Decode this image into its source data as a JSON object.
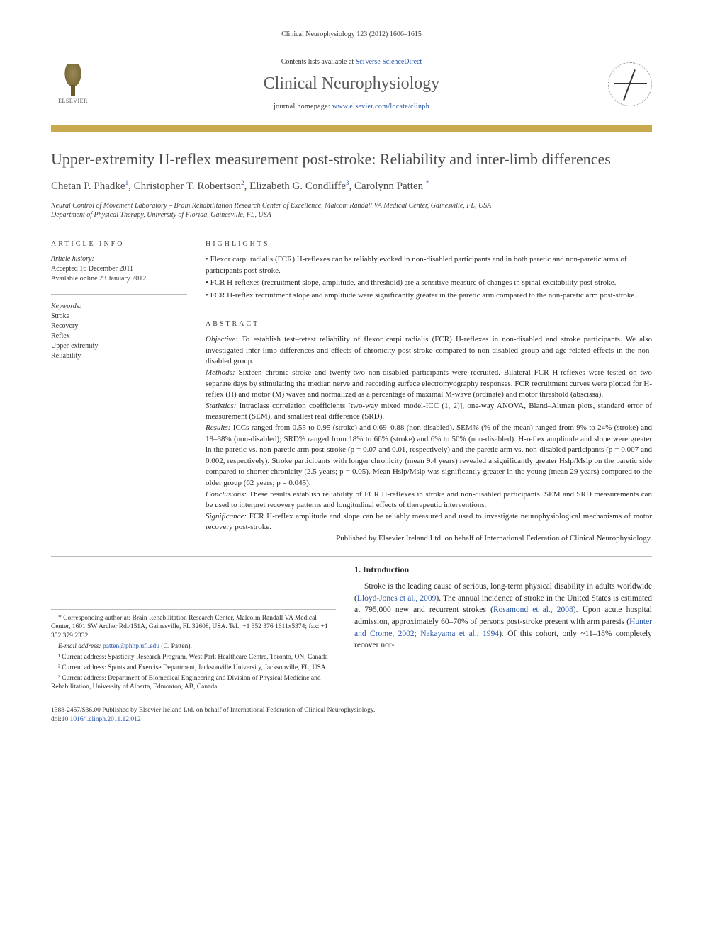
{
  "journal_ref": "Clinical Neurophysiology 123 (2012) 1606–1615",
  "header": {
    "contents_prefix": "Contents lists available at ",
    "contents_link": "SciVerse ScienceDirect",
    "journal_name": "Clinical Neurophysiology",
    "homepage_prefix": "journal homepage: ",
    "homepage_link": "www.elsevier.com/locate/clinph",
    "publisher_label": "ELSEVIER"
  },
  "colors": {
    "accent_bar": "#c9a94f",
    "link": "#2956a8",
    "title_text": "#4a4a4a",
    "body_text": "#2a2a2a",
    "grey_text": "#5a5a5a"
  },
  "title": "Upper-extremity H-reflex measurement post-stroke: Reliability and inter-limb differences",
  "authors_html": "Chetan P. Phadke ¹, Christopher T. Robertson ², Elizabeth G. Condliffe ³, Carolynn Patten *",
  "authors": [
    {
      "name": "Chetan P. Phadke",
      "note": "1"
    },
    {
      "name": "Christopher T. Robertson",
      "note": "2"
    },
    {
      "name": "Elizabeth G. Condliffe",
      "note": "3"
    },
    {
      "name": "Carolynn Patten",
      "note": "*"
    }
  ],
  "affiliations": [
    "Neural Control of Movement Laboratory – Brain Rehabilitation Research Center of Excellence, Malcom Randall VA Medical Center, Gainesville, FL, USA",
    "Department of Physical Therapy, University of Florida, Gainesville, FL, USA"
  ],
  "article_info": {
    "label": "ARTICLE INFO",
    "history_label": "Article history:",
    "accepted": "Accepted 16 December 2011",
    "online": "Available online 23 January 2012",
    "keywords_label": "Keywords:",
    "keywords": [
      "Stroke",
      "Recovery",
      "Reflex",
      "Upper-extremity",
      "Reliability"
    ]
  },
  "highlights": {
    "label": "HIGHLIGHTS",
    "items": [
      "Flexor carpi radialis (FCR) H-reflexes can be reliably evoked in non-disabled participants and in both paretic and non-paretic arms of participants post-stroke.",
      "FCR H-reflexes (recruitment slope, amplitude, and threshold) are a sensitive measure of changes in spinal excitability post-stroke.",
      "FCR H-reflex recruitment slope and amplitude were significantly greater in the paretic arm compared to the non-paretic arm post-stroke."
    ]
  },
  "abstract": {
    "label": "ABSTRACT",
    "objective_label": "Objective:",
    "objective": "To establish test–retest reliability of flexor carpi radialis (FCR) H-reflexes in non-disabled and stroke participants. We also investigated inter-limb differences and effects of chronicity post-stroke compared to non-disabled group and age-related effects in the non-disabled group.",
    "methods_label": "Methods:",
    "methods": "Sixteen chronic stroke and twenty-two non-disabled participants were recruited. Bilateral FCR H-reflexes were tested on two separate days by stimulating the median nerve and recording surface electromyography responses. FCR recruitment curves were plotted for H-reflex (H) and motor (M) waves and normalized as a percentage of maximal M-wave (ordinate) and motor threshold (abscissa).",
    "statistics_label": "Statistics:",
    "statistics": "Intraclass correlation coefficients [two-way mixed model-ICC (1, 2)], one-way ANOVA, Bland–Altman plots, standard error of measurement (SEM), and smallest real difference (SRD).",
    "results_label": "Results:",
    "results": "ICCs ranged from 0.55 to 0.95 (stroke) and 0.69–0.88 (non-disabled). SEM% (% of the mean) ranged from 9% to 24% (stroke) and 18–38% (non-disabled); SRD% ranged from 18% to 66% (stroke) and 6% to 50% (non-disabled). H-reflex amplitude and slope were greater in the paretic vs. non-paretic arm post-stroke (p = 0.07 and 0.01, respectively) and the paretic arm vs. non-disabled participants (p = 0.007 and 0.002, respectively). Stroke participants with longer chronicity (mean 9.4 years) revealed a significantly greater Hslp/Mslp on the paretic side compared to shorter chronicity (2.5 years; p = 0.05). Mean Hslp/Mslp was significantly greater in the young (mean 29 years) compared to the older group (62 years; p = 0.045).",
    "conclusions_label": "Conclusions:",
    "conclusions": "These results establish reliability of FCR H-reflexes in stroke and non-disabled participants. SEM and SRD measurements can be used to interpret recovery patterns and longitudinal effects of therapeutic interventions.",
    "significance_label": "Significance:",
    "significance": "FCR H-reflex amplitude and slope can be reliably measured and used to investigate neurophysiological mechanisms of motor recovery post-stroke.",
    "publisher_line": "Published by Elsevier Ireland Ltd. on behalf of International Federation of Clinical Neurophysiology."
  },
  "footnotes": {
    "corresponding": "* Corresponding author at: Brain Rehabilitation Research Center, Malcolm Randall VA Medical Center, 1601 SW Archer Rd./151A, Gainesville, FL 32608, USA. Tel.: +1 352 376 1611x5374; fax: +1 352 379 2332.",
    "email_label": "E-mail address:",
    "email": "patten@phhp.ufl.edu",
    "email_person": "(C. Patten).",
    "addr1": "¹ Current address: Spasticity Research Program, West Park Healthcare Centre, Toronto, ON, Canada",
    "addr2": "² Current address: Sports and Exercise Department, Jacksonville University, Jacksonville, FL, USA",
    "addr3": "³ Current address: Department of Biomedical Engineering and Division of Physical Medicine and Rehabilitation, University of Alberta, Edmonton, AB, Canada"
  },
  "intro": {
    "heading": "1. Introduction",
    "text_pre": "Stroke is the leading cause of serious, long-term physical disability in adults worldwide (",
    "link1": "Lloyd-Jones et al., 2009",
    "text_mid1": "). The annual incidence of stroke in the United States is estimated at 795,000 new and recurrent strokes (",
    "link2": "Rosamond et al., 2008",
    "text_mid2": "). Upon acute hospital admission, approximately 60–70% of persons post-stroke present with arm paresis (",
    "link3": "Hunter and Crome, 2002; Nakayama et al., 1994",
    "text_post": "). Of this cohort, only ~11–18% completely recover nor-"
  },
  "bottom": {
    "issn_line": "1388-2457/$36.00 Published by Elsevier Ireland Ltd. on behalf of International Federation of Clinical Neurophysiology.",
    "doi_prefix": "doi:",
    "doi": "10.1016/j.clinph.2011.12.012"
  }
}
